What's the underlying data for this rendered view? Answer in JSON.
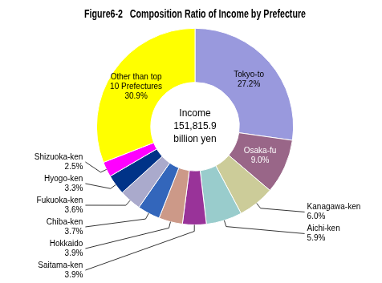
{
  "chart_data": {
    "type": "doughnut",
    "title": "Figure6-2   Composition Ratio of Income by Prefecture",
    "annotations": [
      "Income\n151,815.9\nbillion yen"
    ],
    "categories": [
      "Tokyo-to",
      "Osaka-fu",
      "Kanagawa-ken",
      "Aichi-ken",
      "Saitama-ken",
      "Hokkaido",
      "Chiba-ken",
      "Fukuoka-ken",
      "Hyogo-ken",
      "Shizuoka-ken",
      "Other than top\n10 Prefectures"
    ],
    "values": [
      27.2,
      9.0,
      6.0,
      5.9,
      3.9,
      3.9,
      3.7,
      3.6,
      3.3,
      2.5,
      30.9
    ],
    "value_labels": [
      "27.2%",
      "9.0%",
      "6.0%",
      "5.9%",
      "3.9%",
      "3.9%",
      "3.7%",
      "3.6%",
      "3.3%",
      "2.5%",
      "30.9%"
    ],
    "colors": [
      "#9999DD",
      "#996688",
      "#CCCC99",
      "#99CCCC",
      "#993399",
      "#CC9988",
      "#3366BB",
      "#AAAACC",
      "#003388",
      "#FF00FF",
      "#FFFF00"
    ],
    "data_labels": true
  }
}
